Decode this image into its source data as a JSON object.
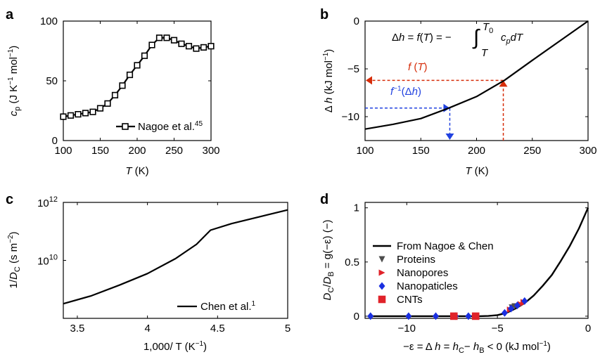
{
  "chart_data": [
    {
      "panel": "a",
      "type": "line",
      "xlabel": "T (K)",
      "ylabel": "c_p (J K⁻¹ mol⁻¹)",
      "xlim": [
        100,
        300
      ],
      "ylim": [
        0,
        100
      ],
      "xticks": [
        "100",
        "150",
        "200",
        "250",
        "300"
      ],
      "yticks": [
        "0",
        "50",
        "100"
      ],
      "legend": {
        "position": "bottom-right",
        "label": "Nagoe et al.",
        "ref": "45"
      },
      "series": [
        {
          "name": "Nagoe et al.",
          "marker": "square",
          "x": [
            100,
            110,
            120,
            130,
            140,
            150,
            160,
            170,
            180,
            190,
            200,
            210,
            220,
            230,
            240,
            250,
            260,
            270,
            280,
            290,
            300
          ],
          "y": [
            20,
            21,
            22,
            23,
            24,
            27,
            31,
            38,
            46,
            55,
            63,
            71,
            80,
            86,
            86,
            84,
            81,
            79,
            77,
            78,
            79
          ]
        }
      ]
    },
    {
      "panel": "b",
      "type": "line",
      "xlabel": "T (K)",
      "ylabel": "Δ h (kJ mol⁻¹)",
      "xlim": [
        100,
        300
      ],
      "ylim": [
        -12.5,
        0
      ],
      "xticks": [
        "100",
        "150",
        "200",
        "250",
        "300"
      ],
      "yticks": [
        "0",
        "−5",
        "−10"
      ],
      "equation": "Δh = f(T) = −∫_T^T₀ c_p dT",
      "annotations": [
        {
          "label": "f (T)",
          "color": "#d62d0a",
          "point": [
            224,
            -6.2
          ]
        },
        {
          "label": "f⁻¹(Δh)",
          "color": "#2142e0",
          "point": [
            176,
            -9.1
          ]
        }
      ],
      "series": [
        {
          "x": [
            100,
            125,
            150,
            175,
            200,
            225,
            250,
            275,
            300
          ],
          "y": [
            -11.3,
            -10.8,
            -10.2,
            -9.1,
            -7.9,
            -6.2,
            -4.1,
            -2.05,
            0
          ]
        }
      ]
    },
    {
      "panel": "c",
      "type": "line",
      "yscale": "log",
      "xlabel": "1,000/ T (K⁻¹)",
      "ylabel": "1/D_C (s m⁻²)",
      "xlim": [
        3.4,
        5
      ],
      "ylim": [
        100000000.0,
        1000000000000.0
      ],
      "xticks": [
        "3.5",
        "4",
        "4.5",
        "5"
      ],
      "yticks": [
        {
          "mantissa": "10",
          "exp": "12"
        },
        {
          "mantissa": "10",
          "exp": "10"
        }
      ],
      "legend": {
        "position": "bottom-right",
        "label": "Chen et al.",
        "ref": "1"
      },
      "series": [
        {
          "name": "Chen et al.",
          "x": [
            3.4,
            3.6,
            3.8,
            4.0,
            4.2,
            4.35,
            4.45,
            4.6,
            4.8,
            5.0
          ],
          "y": [
            320000000.0,
            600000000.0,
            1400000000.0,
            3500000000.0,
            11500000000.0,
            36000000000.0,
            110000000000.0,
            185000000000.0,
            320000000000.0,
            550000000000.0
          ]
        }
      ]
    },
    {
      "panel": "d",
      "type": "scatter",
      "xlabel": "−ε = Δ h = h_C − h_B < 0 (kJ mol⁻¹)",
      "ylabel": "D_C/D_B = g(−ε) (−)",
      "xlim": [
        -12.3,
        0
      ],
      "ylim": [
        -0.02,
        1.05
      ],
      "xticks": [
        "−10",
        "−5",
        "0"
      ],
      "yticks": [
        "0",
        "0.5",
        "1"
      ],
      "legend": {
        "position": "center-left"
      },
      "series": [
        {
          "name": "From Nagoe & Chen",
          "type": "line",
          "color": "#000000",
          "x": [
            -12,
            -10,
            -8,
            -6,
            -5.5,
            -5,
            -4.5,
            -4,
            -3.5,
            -3,
            -2.5,
            -2,
            -1.5,
            -1,
            -0.5,
            0
          ],
          "y": [
            0,
            0,
            0,
            0,
            0.002,
            0.01,
            0.03,
            0.07,
            0.12,
            0.19,
            0.28,
            0.38,
            0.51,
            0.65,
            0.81,
            1.0
          ]
        },
        {
          "name": "Proteins",
          "marker": "triangle-down",
          "color": "#4d4d4d",
          "x": [
            -4.2,
            -4.05
          ],
          "y": [
            0.08,
            0.09
          ]
        },
        {
          "name": "Nanopores",
          "marker": "triangle-right",
          "color": "#e0232a",
          "x": [
            -4.3,
            -3.7,
            -3.55
          ],
          "y": [
            0.06,
            0.11,
            0.13
          ]
        },
        {
          "name": "Nanopaticles",
          "marker": "diamond",
          "color": "#1a2fe0",
          "x": [
            -12,
            -9.9,
            -8.4,
            -7.3,
            -6.6,
            -4.6,
            -4.25,
            -3.9,
            -3.5
          ],
          "y": [
            0,
            0,
            0,
            0,
            0,
            0.03,
            0.07,
            0.1,
            0.14
          ]
        },
        {
          "name": "CNTs",
          "marker": "square",
          "color": "#e0232a",
          "x": [
            -6.2,
            -7.4
          ],
          "y": [
            0,
            0
          ]
        }
      ]
    }
  ]
}
